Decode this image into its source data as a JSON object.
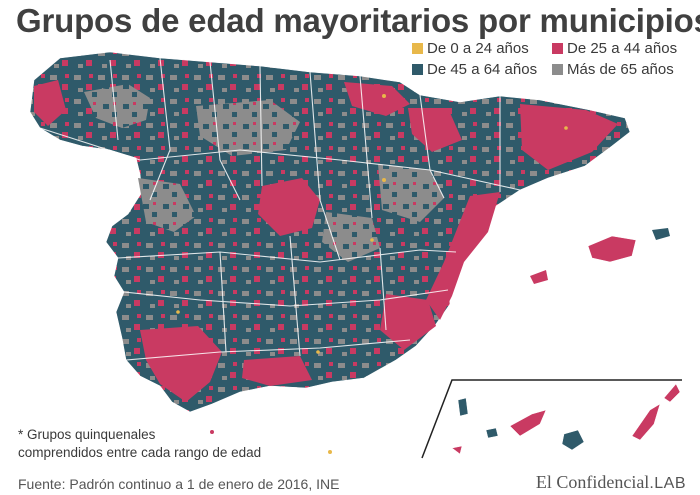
{
  "title": "Grupos de edad mayoritarios por municipios",
  "legend": [
    {
      "label": "De 0 a 24 años",
      "color": "#e8b84a"
    },
    {
      "label": "De 25 a 44 años",
      "color": "#c93a62"
    },
    {
      "label": "De 45 a 64 años",
      "color": "#2f5a6a"
    },
    {
      "label": "Más de 65 años",
      "color": "#8c8c8c"
    }
  ],
  "note": {
    "line1": "* Grupos quinquenales",
    "line2": "comprendidos entre cada rango de edad"
  },
  "source": "Fuente: Padrón continuo a 1 de enero de 2016, INE",
  "brand": {
    "name": "El Confidencial",
    "suffix": ".LAB"
  },
  "map": {
    "region": "España",
    "inset": "Islas Canarias"
  }
}
